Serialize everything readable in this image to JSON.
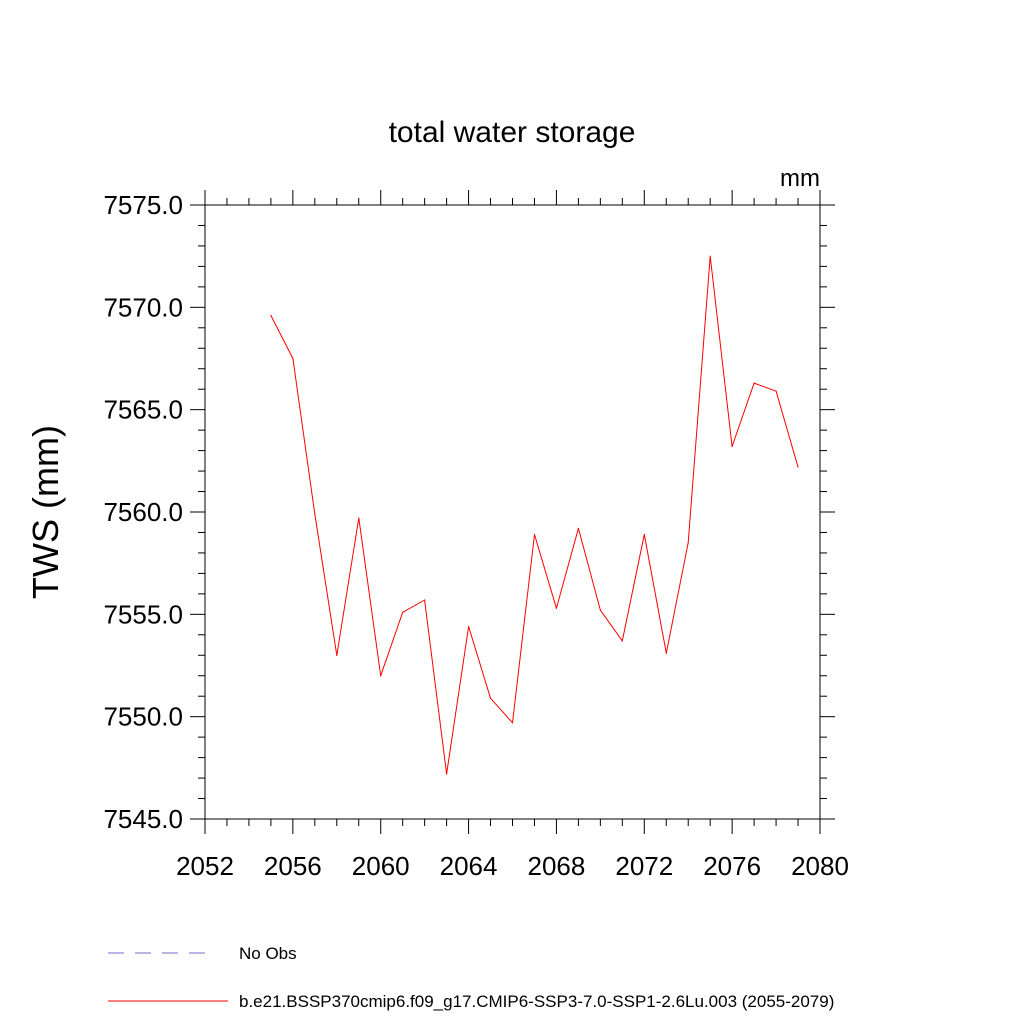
{
  "chart_data": {
    "type": "line",
    "title": "total water storage",
    "units_label": "mm",
    "xlabel": "",
    "ylabel": "TWS  (mm)",
    "xlim": [
      2052,
      2080
    ],
    "ylim": [
      7545.0,
      7575.0
    ],
    "x_ticks": [
      2052,
      2056,
      2060,
      2064,
      2068,
      2072,
      2076,
      2080
    ],
    "x_tick_labels": [
      "2052",
      "2056",
      "2060",
      "2064",
      "2068",
      "2072",
      "2076",
      "2080"
    ],
    "y_ticks": [
      7545.0,
      7550.0,
      7555.0,
      7560.0,
      7565.0,
      7570.0,
      7575.0
    ],
    "y_tick_labels": [
      "7545.0",
      "7550.0",
      "7555.0",
      "7560.0",
      "7565.0",
      "7570.0",
      "7575.0"
    ],
    "grid": false,
    "legend_position": "bottom",
    "series": [
      {
        "name": "No Obs",
        "color": "#6f6fc8",
        "style": "dashed",
        "x": [],
        "y": []
      },
      {
        "name": "b.e21.BSSP370cmip6.f09_g17.CMIP6-SSP3-7.0-SSP1-2.6Lu.003 (2055-2079)",
        "color": "#ff0000",
        "style": "solid",
        "x": [
          2055,
          2056,
          2057,
          2058,
          2059,
          2060,
          2061,
          2062,
          2063,
          2064,
          2065,
          2066,
          2067,
          2068,
          2069,
          2070,
          2071,
          2072,
          2073,
          2074,
          2075,
          2076,
          2077,
          2078,
          2079
        ],
        "y": [
          7569.6,
          7567.5,
          7559.9,
          7553.0,
          7559.7,
          7552.0,
          7555.1,
          7555.7,
          7547.2,
          7554.4,
          7550.9,
          7549.7,
          7558.9,
          7555.3,
          7559.2,
          7555.2,
          7553.7,
          7558.9,
          7553.1,
          7558.5,
          7572.5,
          7563.2,
          7566.3,
          7565.9,
          7562.2
        ]
      }
    ]
  }
}
